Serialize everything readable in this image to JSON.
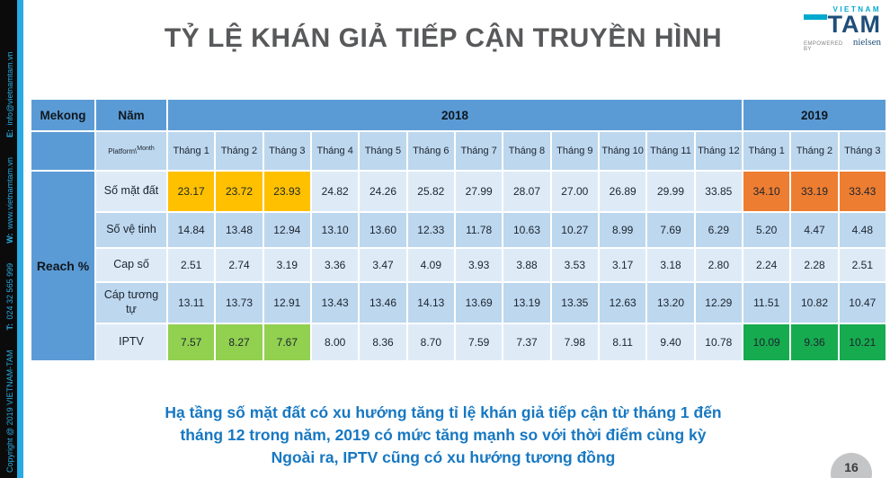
{
  "sidebar": {
    "items": [
      {
        "bold": "",
        "text": "Copyright @ 2019 VIETNAM-TAM"
      },
      {
        "bold": "T:",
        "text": "024 32 565 999"
      },
      {
        "bold": "W:",
        "text": "www.vietnamtam.vn"
      },
      {
        "bold": "E:",
        "text": "info@vietnamtam.vn"
      }
    ]
  },
  "header": {
    "title": "TỶ LỆ KHÁN GIẢ TIẾP CẬN TRUYỀN HÌNH"
  },
  "logo": {
    "vietnam": "VIETNAM",
    "tam": "TAM",
    "empowered": "EMPOWERED BY",
    "nielsen": "nielsen"
  },
  "table": {
    "region_label": "Mekong",
    "year_label": "Năm",
    "years": [
      "2018",
      "2019"
    ],
    "platform_label": "Platform",
    "platform_month_sep": "\\",
    "month_label": "Month",
    "row_group_label": "Reach %",
    "months_2018": [
      "Tháng 1",
      "Tháng 2",
      "Tháng 3",
      "Tháng 4",
      "Tháng 5",
      "Tháng 6",
      "Tháng 7",
      "Tháng 8",
      "Tháng 9",
      "Tháng 10",
      "Tháng 11",
      "Tháng 12"
    ],
    "months_2019": [
      "Tháng 1",
      "Tháng 2",
      "Tháng 3"
    ],
    "highlight_colors": {
      "yellow": "#FFC000",
      "orange": "#ED7D31",
      "light_green": "#92D050",
      "green": "#17AB4F"
    },
    "rows": [
      {
        "label": "Số mặt đất",
        "values_2018": [
          "23.17",
          "23.72",
          "23.93",
          "24.82",
          "24.26",
          "25.82",
          "27.99",
          "28.07",
          "27.00",
          "26.89",
          "29.99",
          "33.85"
        ],
        "values_2019": [
          "34.10",
          "33.19",
          "33.43"
        ],
        "h2018": "#FFC000",
        "h2019": "#ED7D31"
      },
      {
        "label": "Số vệ tinh",
        "values_2018": [
          "14.84",
          "13.48",
          "12.94",
          "13.10",
          "13.60",
          "12.33",
          "11.78",
          "10.63",
          "10.27",
          "8.99",
          "7.69",
          "6.29"
        ],
        "values_2019": [
          "5.20",
          "4.47",
          "4.48"
        ],
        "h2018": null,
        "h2019": null
      },
      {
        "label": "Cap số",
        "values_2018": [
          "2.51",
          "2.74",
          "3.19",
          "3.36",
          "3.47",
          "4.09",
          "3.93",
          "3.88",
          "3.53",
          "3.17",
          "3.18",
          "2.80"
        ],
        "values_2019": [
          "2.24",
          "2.28",
          "2.51"
        ],
        "h2018": null,
        "h2019": null
      },
      {
        "label": "Cáp tương tự",
        "values_2018": [
          "13.11",
          "13.73",
          "12.91",
          "13.43",
          "13.46",
          "14.13",
          "13.69",
          "13.19",
          "13.35",
          "12.63",
          "13.20",
          "12.29"
        ],
        "values_2019": [
          "11.51",
          "10.82",
          "10.47"
        ],
        "h2018": null,
        "h2019": null
      },
      {
        "label": "IPTV",
        "values_2018": [
          "7.57",
          "8.27",
          "7.67",
          "8.00",
          "8.36",
          "8.70",
          "7.59",
          "7.37",
          "7.98",
          "8.11",
          "9.40",
          "10.78"
        ],
        "values_2019": [
          "10.09",
          "9.36",
          "10.21"
        ],
        "h2018": "#92D050",
        "h2019": "#17AB4F"
      }
    ]
  },
  "footer": {
    "lines": [
      "Hạ tầng số mặt đất có xu hướng tăng tỉ lệ khán giả tiếp cận từ tháng 1 đến",
      "tháng 12 trong năm, 2019 có mức tăng mạnh so với thời điểm cùng kỳ",
      "Ngoài ra, IPTV cũng có xu hướng tương đồng"
    ],
    "page_number": "16"
  }
}
